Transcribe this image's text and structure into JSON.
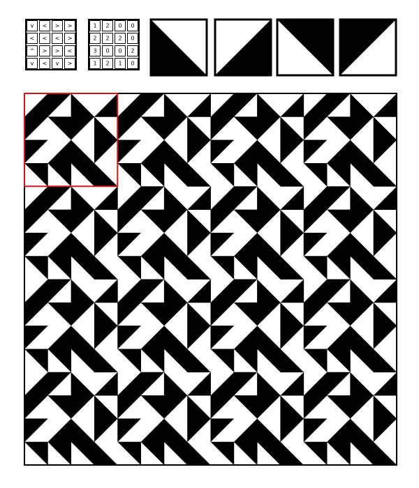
{
  "direction_grid": [
    [
      "v",
      "<",
      ">",
      ">"
    ],
    [
      "<",
      "<",
      "<",
      ">"
    ],
    [
      "^",
      ">",
      ">",
      "<"
    ],
    [
      "v",
      "<",
      "v",
      ">"
    ]
  ],
  "rotation_grid": [
    [
      "1",
      "2",
      "0",
      "0"
    ],
    [
      "2",
      "2",
      "2",
      "0"
    ],
    [
      "3",
      "0",
      "0",
      "2"
    ],
    [
      "1",
      "2",
      "1",
      "0"
    ]
  ],
  "tile_orientations": [
    0,
    1,
    2,
    3
  ],
  "tile_names": [
    "tile-black-bottom-left",
    "tile-black-bottom-right",
    "tile-black-top-right",
    "tile-black-top-left"
  ],
  "pattern": {
    "repeat_cells": 4,
    "cells_per_side": 16,
    "highlight_repeats": 1,
    "colors": {
      "ink": "#000000",
      "paper": "#ffffff",
      "highlight": "#cc1a1a"
    }
  }
}
